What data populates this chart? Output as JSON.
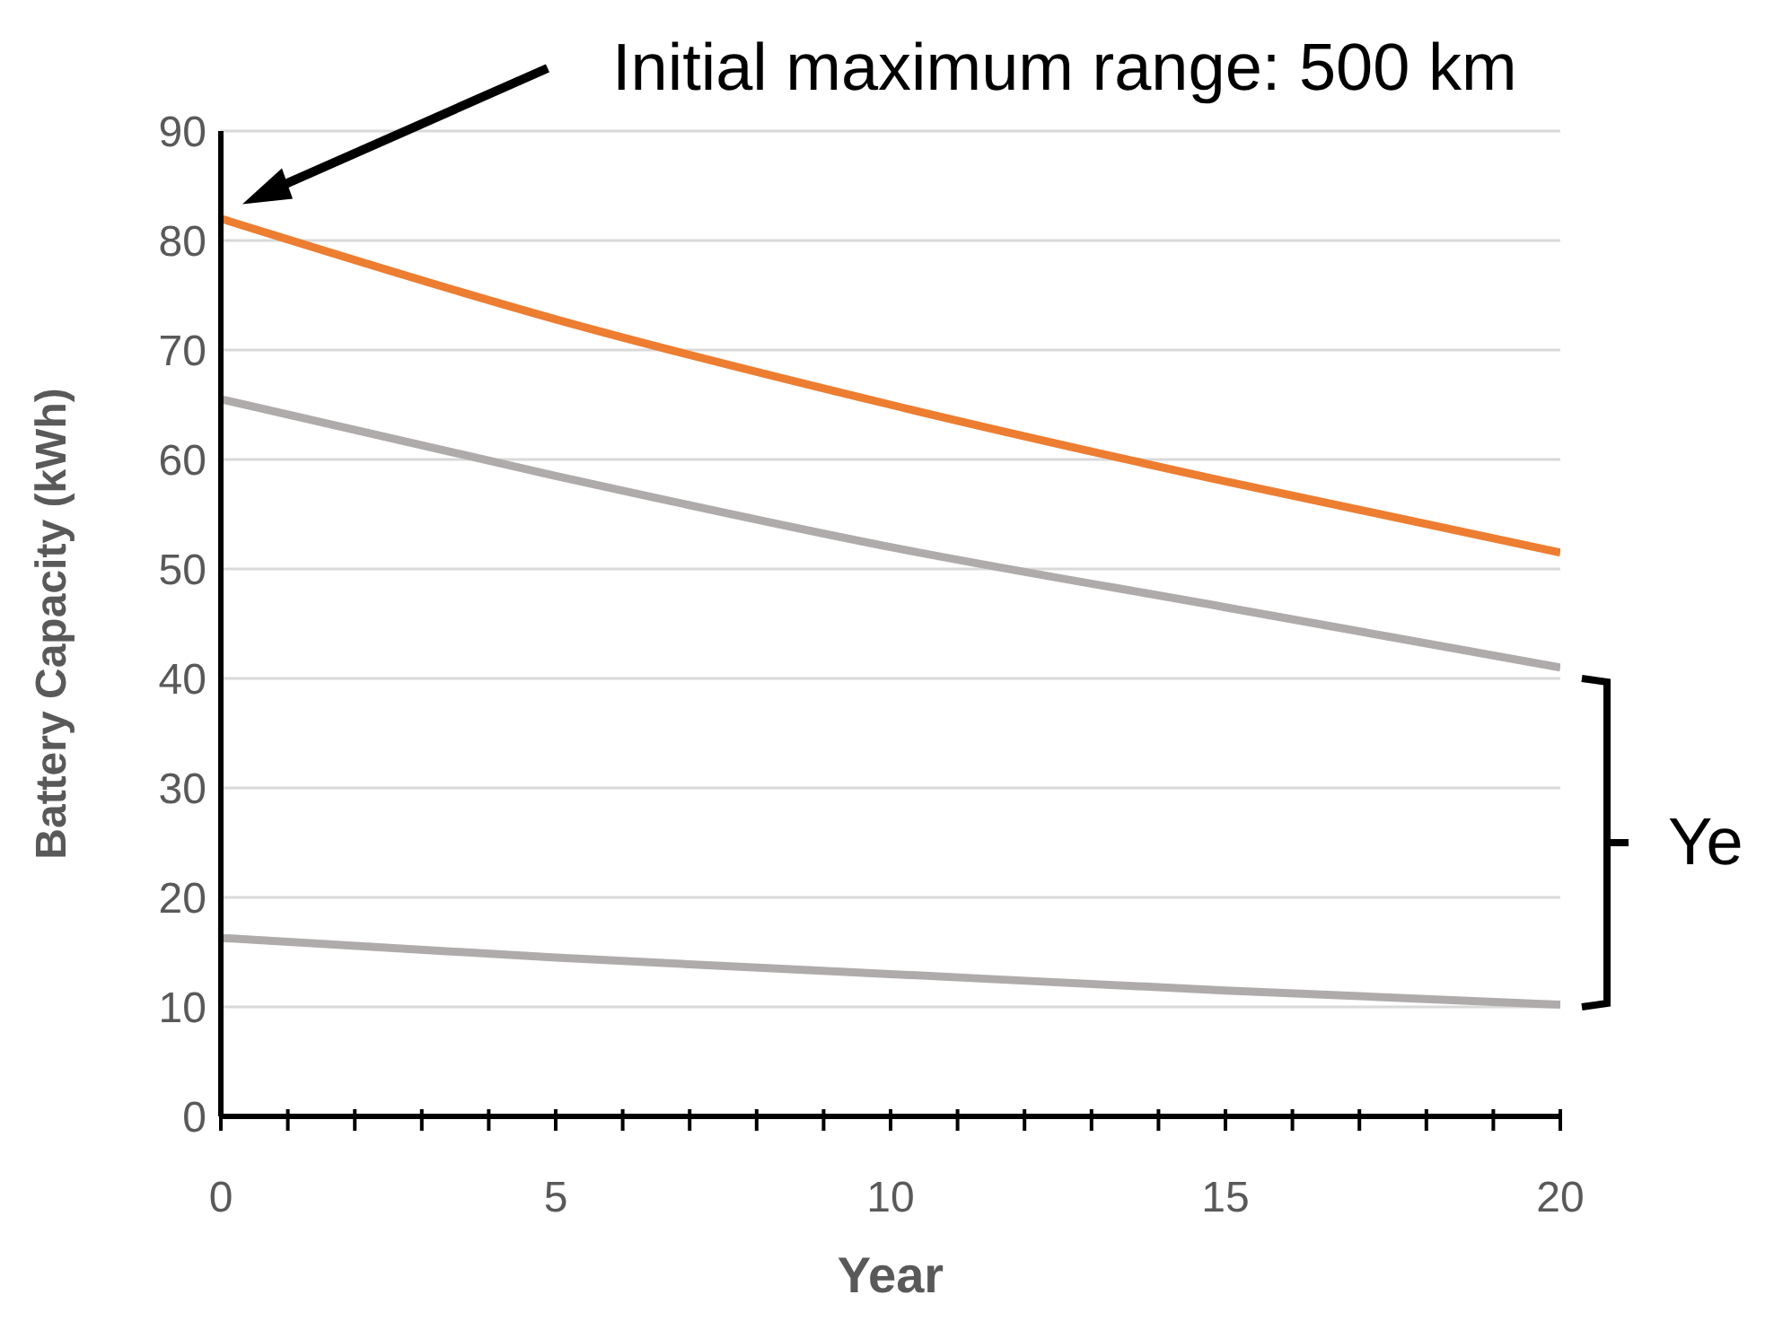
{
  "chart_data": {
    "type": "line",
    "xlabel": "Year",
    "ylabel": "Battery Capacity (kWh)",
    "x": [
      0,
      5,
      10,
      15,
      20
    ],
    "series": [
      {
        "color": "#ed7d31",
        "values": [
          82,
          72.8,
          65,
          58,
          51.5
        ]
      },
      {
        "color": "#afabab",
        "values": [
          65.5,
          58.5,
          52,
          46.5,
          41
        ]
      },
      {
        "color": "#afabab",
        "values": [
          16.3,
          14.5,
          13,
          11.5,
          10.2
        ]
      }
    ],
    "xlim": [
      0,
      20
    ],
    "xticks": [
      0,
      {
        "value": 1,
        "label": null
      },
      {
        "value": 2,
        "label": null
      },
      {
        "value": 3,
        "label": null
      },
      {
        "value": 4,
        "label": null
      },
      5,
      {
        "value": 6,
        "label": null
      },
      {
        "value": 7,
        "label": null
      },
      {
        "value": 8,
        "label": null
      },
      {
        "value": 9,
        "label": null
      },
      10,
      {
        "value": 11,
        "label": null
      },
      {
        "value": 12,
        "label": null
      },
      {
        "value": 13,
        "label": null
      },
      {
        "value": 14,
        "label": null
      },
      15,
      {
        "value": 16,
        "label": null
      },
      {
        "value": 17,
        "label": null
      },
      {
        "value": 18,
        "label": null
      },
      {
        "value": 19,
        "label": null
      },
      20
    ],
    "ylim": [
      0,
      90
    ],
    "yticks": [
      0,
      10,
      20,
      30,
      40,
      50,
      60,
      70,
      80,
      90
    ],
    "grid": "y",
    "marker": "none",
    "line_style": "solid",
    "annotations": [
      "Initial maximum range: 500 km",
      "Ye"
    ]
  }
}
